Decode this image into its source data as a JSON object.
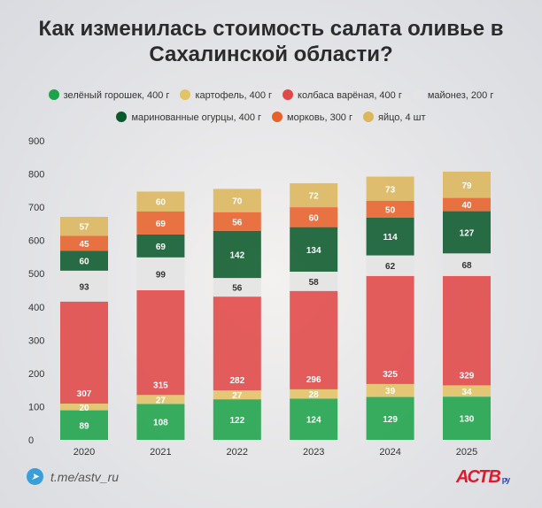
{
  "chart_data": {
    "type": "bar",
    "stacked": true,
    "title": "Как изменилась стоимость салата оливье в Сахалинской области?",
    "categories": [
      "2020",
      "2021",
      "2022",
      "2023",
      "2024",
      "2025"
    ],
    "ylim": [
      0,
      900
    ],
    "yticks": [
      0,
      100,
      200,
      300,
      400,
      500,
      600,
      700,
      800,
      900
    ],
    "legend_position": "top",
    "series": [
      {
        "name": "зелёный горошек, 400 г",
        "color": "#1fa34a",
        "values": [
          89,
          108,
          122,
          124,
          129,
          130
        ]
      },
      {
        "name": "картофель, 400 г",
        "color": "#e2c365",
        "values": [
          20,
          27,
          27,
          28,
          39,
          34
        ]
      },
      {
        "name": "колбаса варёная, 400 г",
        "color": "#e14848",
        "values": [
          307,
          315,
          282,
          296,
          325,
          329
        ]
      },
      {
        "name": "майонез, 200 г",
        "color": "#e4e4e4",
        "values": [
          93,
          99,
          56,
          58,
          62,
          68
        ]
      },
      {
        "name": "маринованные огурцы, 400 г",
        "color": "#0b5a2c",
        "values": [
          60,
          69,
          142,
          134,
          114,
          127
        ]
      },
      {
        "name": "морковь, 300 г",
        "color": "#e8612a",
        "values": [
          45,
          69,
          56,
          60,
          50,
          40
        ]
      },
      {
        "name": "яйцо, 4 шт",
        "color": "#dcb65c",
        "values": [
          57,
          60,
          70,
          72,
          73,
          79
        ]
      }
    ]
  },
  "footer": {
    "link": "t.me/astv_ru",
    "logo": "АСТВ",
    "logo_suffix": "ру",
    "telegram_icon": "telegram-icon"
  }
}
